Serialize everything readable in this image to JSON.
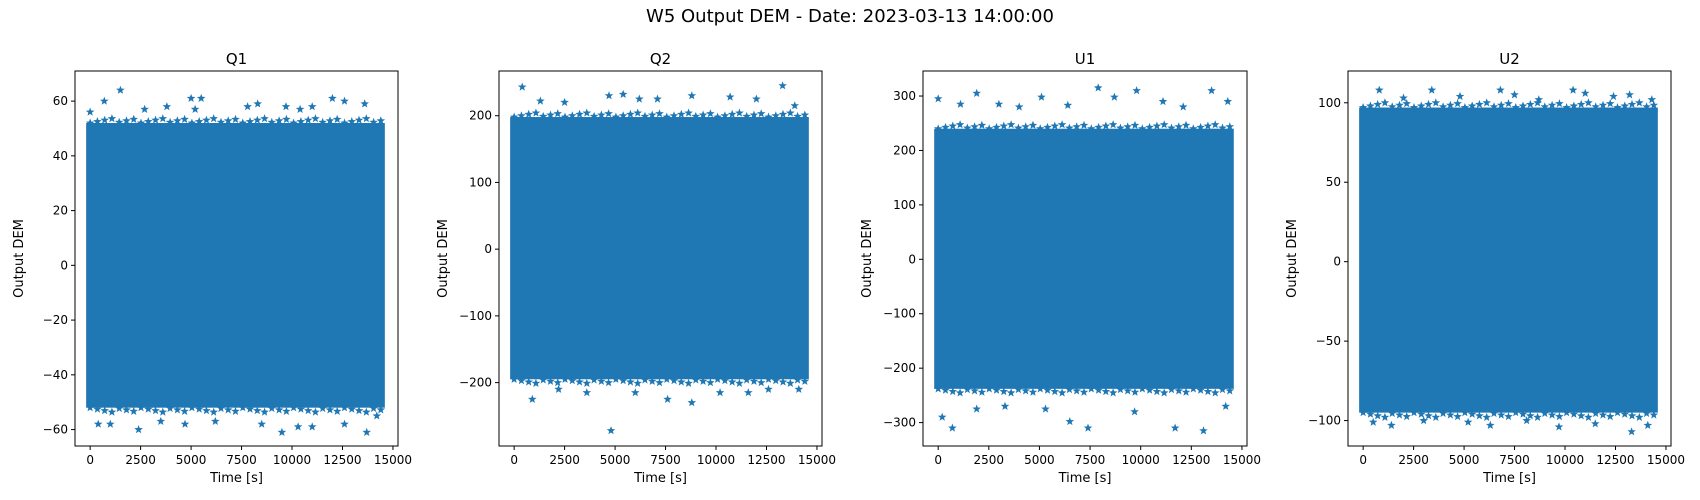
{
  "figure": {
    "suptitle": "W5 Output DEM - Date: 2023-03-13 14:00:00",
    "marker": "star",
    "marker_color": "#1f77b4"
  },
  "chart_data": [
    {
      "type": "scatter",
      "title": "Q1",
      "xlabel": "Time [s]",
      "ylabel": "Output DEM",
      "xlim": [
        -750,
        15250
      ],
      "ylim": [
        -66,
        71
      ],
      "xticks": [
        0,
        2500,
        5000,
        7500,
        10000,
        12500,
        15000
      ],
      "yticks": [
        -60,
        -40,
        -20,
        0,
        20,
        40,
        60
      ],
      "x_range": [
        0,
        14400
      ],
      "band": [
        -52,
        52
      ],
      "outliers": [
        [
          0,
          56
        ],
        [
          700,
          60
        ],
        [
          1500,
          64
        ],
        [
          2700,
          57
        ],
        [
          3800,
          58
        ],
        [
          5000,
          61
        ],
        [
          5500,
          61
        ],
        [
          5200,
          57
        ],
        [
          7800,
          58
        ],
        [
          8300,
          59
        ],
        [
          9700,
          58
        ],
        [
          10400,
          57
        ],
        [
          11000,
          58
        ],
        [
          12000,
          61
        ],
        [
          12600,
          60
        ],
        [
          13600,
          59
        ],
        [
          400,
          -58
        ],
        [
          1000,
          -58
        ],
        [
          2400,
          -60
        ],
        [
          3500,
          -57
        ],
        [
          4700,
          -58
        ],
        [
          6200,
          -57
        ],
        [
          8500,
          -58
        ],
        [
          9500,
          -61
        ],
        [
          10300,
          -59
        ],
        [
          11000,
          -59
        ],
        [
          12600,
          -58
        ],
        [
          13700,
          -61
        ],
        [
          14200,
          -55
        ]
      ]
    },
    {
      "type": "scatter",
      "title": "Q2",
      "xlabel": "Time [s]",
      "ylabel": "Output DEM",
      "xlim": [
        -750,
        15250
      ],
      "ylim": [
        -295,
        267
      ],
      "xticks": [
        0,
        2500,
        5000,
        7500,
        10000,
        12500,
        15000
      ],
      "yticks": [
        -200,
        -100,
        0,
        100,
        200
      ],
      "x_range": [
        0,
        14400
      ],
      "band": [
        -195,
        198
      ],
      "outliers": [
        [
          400,
          243
        ],
        [
          1300,
          222
        ],
        [
          2500,
          220
        ],
        [
          4700,
          230
        ],
        [
          5400,
          232
        ],
        [
          6200,
          225
        ],
        [
          7100,
          225
        ],
        [
          8800,
          230
        ],
        [
          10700,
          228
        ],
        [
          12000,
          225
        ],
        [
          13300,
          245
        ],
        [
          13900,
          215
        ],
        [
          900,
          -225
        ],
        [
          2200,
          -210
        ],
        [
          3600,
          -215
        ],
        [
          4800,
          -272
        ],
        [
          6000,
          -215
        ],
        [
          7600,
          -225
        ],
        [
          8800,
          -230
        ],
        [
          10200,
          -215
        ],
        [
          11600,
          -215
        ],
        [
          12600,
          -210
        ],
        [
          14100,
          -210
        ]
      ]
    },
    {
      "type": "scatter",
      "title": "U1",
      "xlabel": "Time [s]",
      "ylabel": "Output DEM",
      "xlim": [
        -750,
        15250
      ],
      "ylim": [
        -343,
        346
      ],
      "xticks": [
        0,
        2500,
        5000,
        7500,
        10000,
        12500,
        15000
      ],
      "yticks": [
        -300,
        -200,
        -100,
        0,
        100,
        200,
        300
      ],
      "x_range": [
        0,
        14400
      ],
      "band": [
        -238,
        240
      ],
      "outliers": [
        [
          0,
          295
        ],
        [
          1100,
          285
        ],
        [
          1900,
          305
        ],
        [
          3000,
          285
        ],
        [
          4000,
          280
        ],
        [
          5100,
          298
        ],
        [
          6400,
          283
        ],
        [
          7900,
          315
        ],
        [
          8700,
          298
        ],
        [
          9800,
          310
        ],
        [
          11100,
          290
        ],
        [
          12100,
          280
        ],
        [
          13500,
          310
        ],
        [
          14300,
          290
        ],
        [
          200,
          -290
        ],
        [
          700,
          -310
        ],
        [
          1900,
          -275
        ],
        [
          3300,
          -270
        ],
        [
          5300,
          -275
        ],
        [
          6500,
          -298
        ],
        [
          7400,
          -310
        ],
        [
          9700,
          -280
        ],
        [
          11700,
          -310
        ],
        [
          13100,
          -315
        ],
        [
          14200,
          -270
        ]
      ]
    },
    {
      "type": "scatter",
      "title": "U2",
      "xlabel": "Time [s]",
      "ylabel": "Output DEM",
      "xlim": [
        -750,
        15250
      ],
      "ylim": [
        -116,
        120
      ],
      "xticks": [
        0,
        2500,
        5000,
        7500,
        10000,
        12500,
        15000
      ],
      "yticks": [
        -100,
        -50,
        0,
        50,
        100
      ],
      "x_range": [
        0,
        14400
      ],
      "band": [
        -95,
        97
      ],
      "outliers": [
        [
          800,
          108
        ],
        [
          2000,
          103
        ],
        [
          3400,
          108
        ],
        [
          4800,
          104
        ],
        [
          6800,
          108
        ],
        [
          7500,
          105
        ],
        [
          8700,
          102
        ],
        [
          10400,
          108
        ],
        [
          11000,
          106
        ],
        [
          12400,
          104
        ],
        [
          13200,
          105
        ],
        [
          14300,
          102
        ],
        [
          500,
          -101
        ],
        [
          1400,
          -103
        ],
        [
          3000,
          -100
        ],
        [
          5200,
          -101
        ],
        [
          6300,
          -103
        ],
        [
          8100,
          -100
        ],
        [
          9700,
          -104
        ],
        [
          11500,
          -102
        ],
        [
          13300,
          -107
        ],
        [
          14100,
          -103
        ]
      ]
    }
  ]
}
